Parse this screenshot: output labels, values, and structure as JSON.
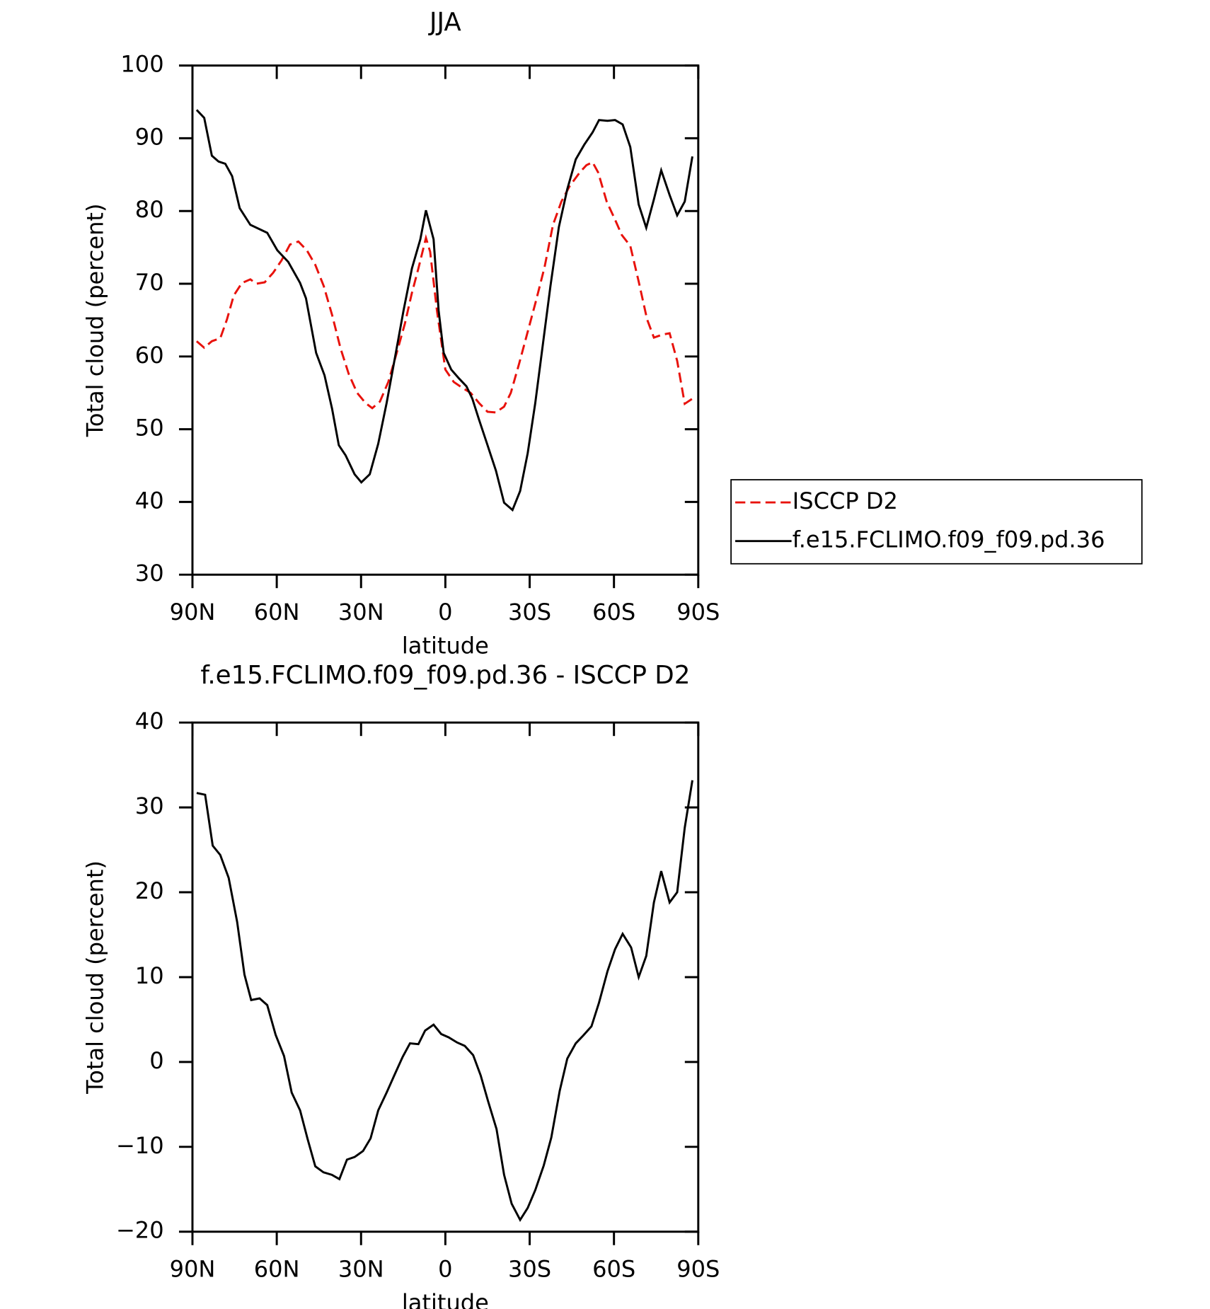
{
  "chart_data": [
    {
      "type": "line",
      "title": "JJA",
      "x_label": "latitude",
      "y_label": "Total cloud (percent)",
      "xlim": [
        90,
        -90
      ],
      "xticks": [
        {
          "value": 90,
          "label": "90N"
        },
        {
          "value": 60,
          "label": "60N"
        },
        {
          "value": 30,
          "label": "30N"
        },
        0,
        {
          "value": -30,
          "label": "30S"
        },
        {
          "value": -60,
          "label": "60S"
        },
        {
          "value": -90,
          "label": "90S"
        }
      ],
      "ylim": [
        30,
        100
      ],
      "yticks": [
        30,
        40,
        50,
        60,
        70,
        80,
        90,
        100
      ],
      "legend": "right",
      "series": [
        {
          "name": "ISCCP D2",
          "color": "#e8120c",
          "dash": true,
          "x": [
            88.5,
            85.8,
            83.1,
            80.1,
            77.7,
            75.3,
            72.4,
            69.4,
            67.3,
            64.3,
            61.3,
            58.3,
            55.3,
            52.3,
            49.3,
            46.3,
            43.3,
            40.3,
            37.3,
            34.4,
            31.4,
            28.4,
            26.0,
            23.3,
            20.3,
            17.3,
            14.4,
            12.0,
            9.6,
            6.9,
            5.4,
            3.0,
            0.0,
            -3.0,
            -6.0,
            -9.0,
            -12.0,
            -15.0,
            -17.9,
            -20.9,
            -23.3,
            -26.3,
            -29.3,
            -32.3,
            -35.3,
            -38.3,
            -41.3,
            -44.2,
            -47.8,
            -50.2,
            -52.4,
            -54.4,
            -57.4,
            -60.4,
            -62.8,
            -65.8,
            -68.8,
            -71.8,
            -74.2,
            -77.2,
            -79.8,
            -82.5,
            -85.2,
            -87.9
          ],
          "values": [
            62.1,
            61.2,
            62.1,
            62.5,
            65.1,
            68.4,
            70.1,
            70.6,
            70.0,
            70.2,
            71.5,
            73.2,
            75.4,
            75.8,
            74.6,
            72.6,
            69.7,
            65.7,
            61.1,
            57.6,
            55.0,
            53.6,
            52.9,
            53.8,
            56.5,
            60.5,
            64.5,
            68.6,
            72.1,
            76.3,
            74.4,
            66.3,
            58.2,
            56.5,
            55.7,
            55.0,
            53.6,
            52.4,
            52.3,
            53.1,
            55.0,
            59.1,
            63.4,
            67.7,
            72.3,
            78.1,
            81.3,
            83.4,
            85.3,
            86.3,
            86.7,
            85.3,
            81.3,
            78.8,
            76.7,
            75.2,
            70.3,
            65.1,
            62.6,
            63.0,
            63.2,
            59.4,
            53.5,
            54.2
          ]
        },
        {
          "name": "f.e15.FCLIMO.f09_f09.pd.36",
          "color": "#000000",
          "dash": false,
          "x": [
            88.5,
            85.8,
            83.1,
            80.7,
            78.3,
            75.9,
            73.2,
            69.4,
            63.4,
            59.8,
            55.9,
            51.7,
            49.6,
            46.0,
            43.0,
            40.3,
            37.9,
            35.5,
            32.3,
            29.9,
            26.9,
            23.9,
            20.9,
            17.9,
            14.9,
            11.9,
            8.9,
            6.9,
            4.2,
            2.4,
            0.6,
            -2.1,
            -4.8,
            -7.5,
            -9.6,
            -12.0,
            -15.0,
            -18.0,
            -20.9,
            -23.9,
            -26.6,
            -29.3,
            -32.0,
            -34.7,
            -37.4,
            -40.4,
            -43.4,
            -46.4,
            -49.4,
            -52.4,
            -54.7,
            -57.7,
            -60.4,
            -63.1,
            -65.8,
            -68.8,
            -71.5,
            -74.2,
            -76.8,
            -79.8,
            -82.5,
            -85.2,
            -87.9
          ],
          "values": [
            93.9,
            92.8,
            87.6,
            86.8,
            86.5,
            84.8,
            80.4,
            78.1,
            77.0,
            74.6,
            73.0,
            70.1,
            68.0,
            60.5,
            57.4,
            52.8,
            47.8,
            46.4,
            43.8,
            42.7,
            43.8,
            48.0,
            53.6,
            59.9,
            66.3,
            72.1,
            76.1,
            80.1,
            76.1,
            66.3,
            60.5,
            58.2,
            57.0,
            55.9,
            54.2,
            51.3,
            47.8,
            44.3,
            39.9,
            38.9,
            41.5,
            46.7,
            53.6,
            61.7,
            69.7,
            77.8,
            83.0,
            87.1,
            89.1,
            90.8,
            92.5,
            92.4,
            92.5,
            91.9,
            88.8,
            80.9,
            77.7,
            81.6,
            85.6,
            82.2,
            79.4,
            81.3,
            87.5
          ]
        }
      ]
    },
    {
      "type": "line",
      "title": "f.e15.FCLIMO.f09_f09.pd.36 - ISCCP D2",
      "x_label": "latitude",
      "y_label": "Total cloud (percent)",
      "xlim": [
        90,
        -90
      ],
      "xticks": [
        {
          "value": 90,
          "label": "90N"
        },
        {
          "value": 60,
          "label": "60N"
        },
        {
          "value": 30,
          "label": "30N"
        },
        0,
        {
          "value": -30,
          "label": "30S"
        },
        {
          "value": -60,
          "label": "60S"
        },
        {
          "value": -90,
          "label": "90S"
        }
      ],
      "ylim": [
        -20,
        40
      ],
      "yticks": [
        {
          "value": -20,
          "label": "−20"
        },
        {
          "value": -10,
          "label": "−10"
        },
        0,
        10,
        20,
        30,
        40
      ],
      "series": [
        {
          "color": "#000000",
          "dash": false,
          "x": [
            88.5,
            85.5,
            82.8,
            80.1,
            77.1,
            74.1,
            71.5,
            69.1,
            66.1,
            63.4,
            60.4,
            57.4,
            54.7,
            51.7,
            49.0,
            46.3,
            43.4,
            40.4,
            37.7,
            35.0,
            32.3,
            29.3,
            26.6,
            23.9,
            20.9,
            18.2,
            15.2,
            12.6,
            9.6,
            7.2,
            4.2,
            1.5,
            -1.2,
            -4.2,
            -6.9,
            -9.9,
            -12.6,
            -15.2,
            -18.2,
            -20.9,
            -23.6,
            -26.6,
            -29.3,
            -32.0,
            -35.0,
            -37.7,
            -40.7,
            -43.4,
            -46.4,
            -49.0,
            -52.0,
            -54.7,
            -57.7,
            -60.4,
            -63.1,
            -66.1,
            -68.8,
            -71.5,
            -74.2,
            -76.8,
            -79.8,
            -82.5,
            -85.2,
            -87.9
          ],
          "values": [
            31.7,
            31.5,
            25.5,
            24.4,
            21.7,
            16.5,
            10.3,
            7.3,
            7.5,
            6.7,
            3.2,
            0.7,
            -3.6,
            -5.7,
            -9.1,
            -12.3,
            -13.0,
            -13.3,
            -13.8,
            -11.5,
            -11.2,
            -10.5,
            -9.0,
            -5.7,
            -3.6,
            -1.6,
            0.6,
            2.2,
            2.1,
            3.7,
            4.4,
            3.3,
            2.9,
            2.3,
            1.9,
            0.8,
            -1.6,
            -4.6,
            -7.9,
            -13.3,
            -16.7,
            -18.6,
            -17.2,
            -15.1,
            -12.2,
            -8.9,
            -3.4,
            0.4,
            2.2,
            3.1,
            4.2,
            7.0,
            10.7,
            13.3,
            15.1,
            13.5,
            10.0,
            12.5,
            18.8,
            22.5,
            18.8,
            20.0,
            27.6,
            33.2
          ]
        }
      ]
    }
  ]
}
